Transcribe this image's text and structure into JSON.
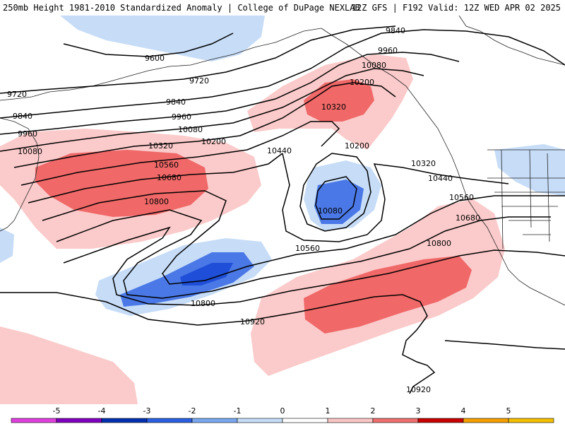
{
  "header": {
    "left_title": "250mb Height 1981-2010 Standardized Anomaly | College of DuPage NEXLAB",
    "right_title": "12Z GFS | F192 Valid: 12Z WED APR 02 2025"
  },
  "contours": {
    "labels": [
      "9600",
      "9720",
      "9720",
      "9840",
      "9840",
      "9840",
      "9960",
      "9960",
      "9960",
      "10080",
      "10080",
      "10080",
      "10200",
      "10200",
      "10200",
      "10320",
      "10320",
      "10320",
      "10440",
      "10440",
      "10560",
      "10560",
      "10560",
      "10680",
      "10680",
      "10800",
      "10800",
      "10800",
      "10080",
      "10920",
      "10920"
    ]
  },
  "colorbar": {
    "ticks": [
      "-5",
      "-4",
      "-3",
      "-2",
      "-1",
      "0",
      "1",
      "2",
      "3",
      "4",
      "5"
    ],
    "colors": [
      "#e040e0",
      "#8000c0",
      "#0030b0",
      "#2a5fe0",
      "#7aa8f0",
      "#c6dcf7",
      "#ffffff",
      "#fbc6c6",
      "#f07070",
      "#c80000",
      "#f5a000",
      "#f5c000"
    ]
  },
  "shading": {
    "neg_light": "#c6dcf7",
    "neg_med": "#4a78e6",
    "neg_dark": "#1f4fd8",
    "pos_light": "#fbcaca",
    "pos_med": "#f06868"
  }
}
